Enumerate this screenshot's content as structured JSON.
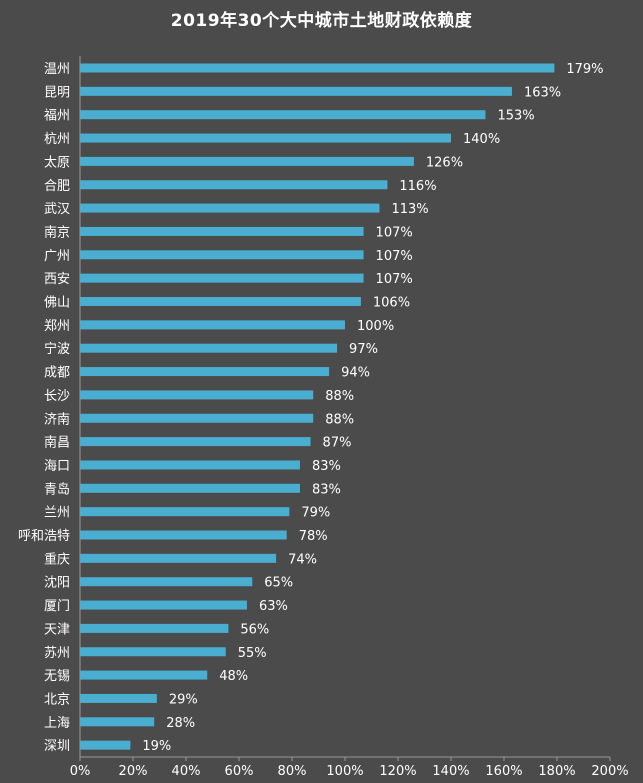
{
  "chart_data": {
    "type": "bar",
    "orientation": "horizontal",
    "title": "2019年30个大中城市土地财政依赖度",
    "categories": [
      "温州",
      "昆明",
      "福州",
      "杭州",
      "太原",
      "合肥",
      "武汉",
      "南京",
      "广州",
      "西安",
      "佛山",
      "郑州",
      "宁波",
      "成都",
      "长沙",
      "济南",
      "南昌",
      "海口",
      "青岛",
      "兰州",
      "呼和浩特",
      "重庆",
      "沈阳",
      "厦门",
      "天津",
      "苏州",
      "无锡",
      "北京",
      "上海",
      "深圳"
    ],
    "values": [
      179,
      163,
      153,
      140,
      126,
      116,
      113,
      107,
      107,
      107,
      106,
      100,
      97,
      94,
      88,
      88,
      87,
      83,
      83,
      79,
      78,
      74,
      65,
      63,
      56,
      55,
      48,
      29,
      28,
      19
    ],
    "value_labels": [
      "179%",
      "163%",
      "153%",
      "140%",
      "126%",
      "116%",
      "113%",
      "107%",
      "107%",
      "107%",
      "106%",
      "100%",
      "97%",
      "94%",
      "88%",
      "88%",
      "87%",
      "83%",
      "83%",
      "79%",
      "78%",
      "74%",
      "65%",
      "63%",
      "56%",
      "55%",
      "48%",
      "29%",
      "28%",
      "19%"
    ],
    "xlim": [
      0,
      200
    ],
    "x_ticks": [
      0,
      20,
      40,
      60,
      80,
      100,
      120,
      140,
      160,
      180,
      200
    ],
    "x_tick_labels": [
      "0%",
      "20%",
      "40%",
      "60%",
      "80%",
      "100%",
      "120%",
      "140%",
      "160%",
      "180%",
      "200%"
    ],
    "xlabel": "",
    "ylabel": "",
    "grid": false,
    "colors": {
      "bar": "#4aaed0",
      "background": "#4b4b4b",
      "text": "#ffffff",
      "axis": "#9a9a9a"
    }
  }
}
